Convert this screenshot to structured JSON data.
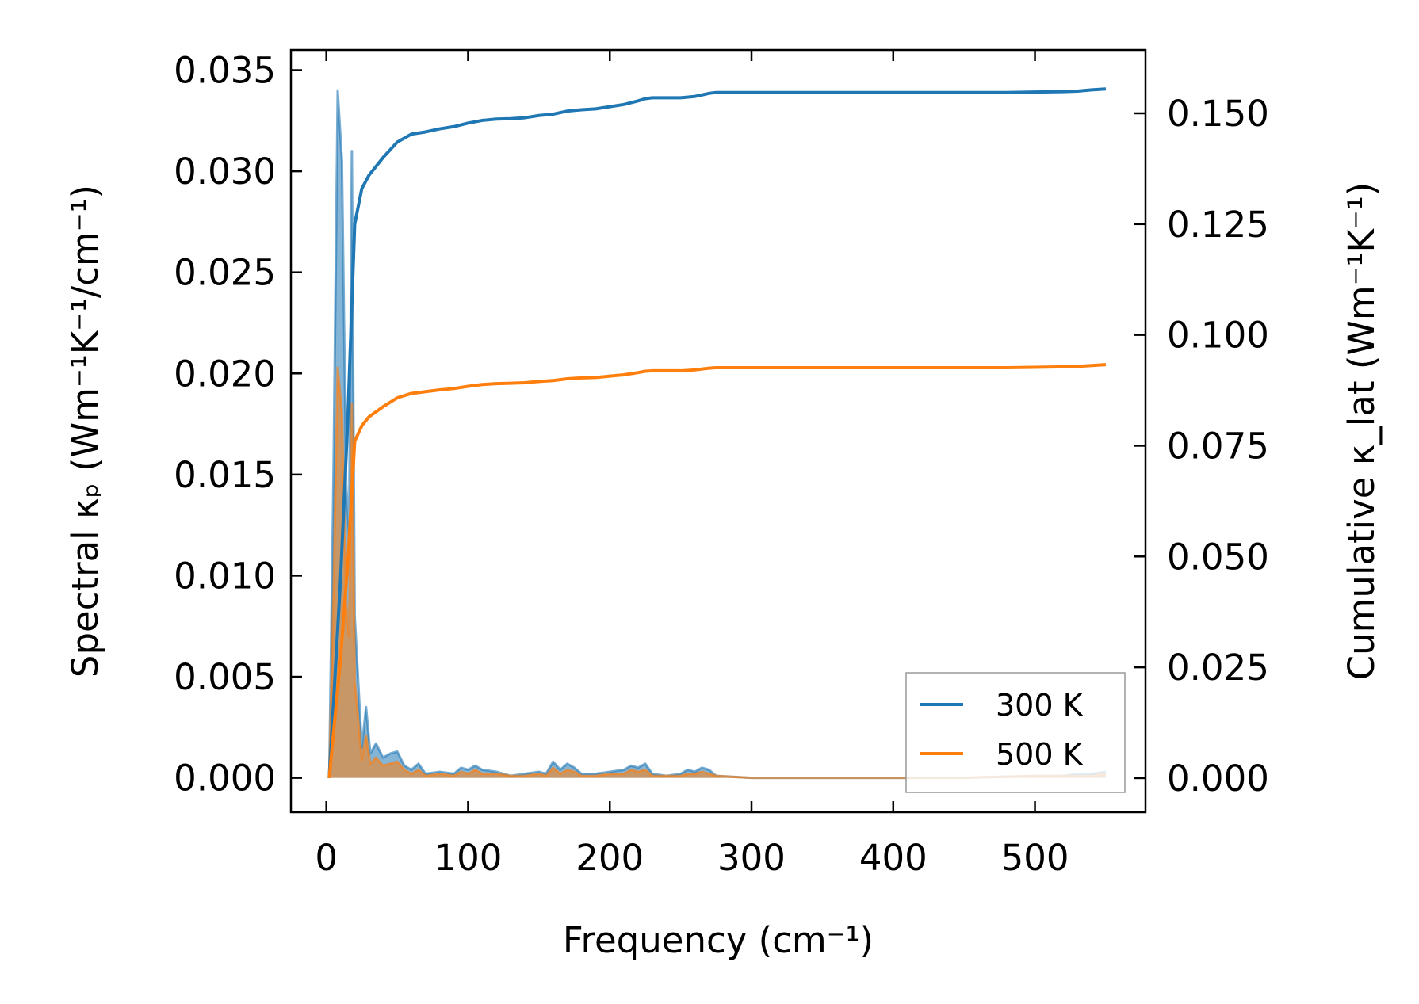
{
  "chart_data": {
    "type": "area",
    "xlabel": "Frequency (cm⁻¹)",
    "ylabel_left": "Spectral κₚ (Wm⁻¹K⁻¹/cm⁻¹)",
    "ylabel_right": "Cumulative κ_lat (Wm⁻¹K⁻¹)",
    "xlim": [
      -25,
      578
    ],
    "ylim_left": [
      -0.0017,
      0.036
    ],
    "ylim_right": [
      -0.0077,
      0.1643
    ],
    "x_ticks": [
      "0",
      "100",
      "200",
      "300",
      "400",
      "500"
    ],
    "y_ticks_left": [
      "0.000",
      "0.005",
      "0.010",
      "0.015",
      "0.020",
      "0.025",
      "0.030",
      "0.035"
    ],
    "y_ticks_right": [
      "0.000",
      "0.025",
      "0.050",
      "0.075",
      "0.100",
      "0.125",
      "0.150"
    ],
    "legend_position": "lower right",
    "colors": {
      "300 K": "#1f77b4",
      "500 K": "#ff7f0e"
    },
    "legend": [
      "300 K",
      "500 K"
    ],
    "series": [
      {
        "name": "300 K",
        "axis": "left",
        "kind": "spectral",
        "points": [
          [
            2,
            0.0
          ],
          [
            5,
            0.015
          ],
          [
            8,
            0.034
          ],
          [
            11,
            0.0305
          ],
          [
            14,
            0.0145
          ],
          [
            16,
            0.012
          ],
          [
            18,
            0.031
          ],
          [
            20,
            0.008
          ],
          [
            25,
            0.0015
          ],
          [
            28,
            0.0035
          ],
          [
            31,
            0.0012
          ],
          [
            35,
            0.0017
          ],
          [
            40,
            0.001
          ],
          [
            45,
            0.0012
          ],
          [
            50,
            0.0013
          ],
          [
            55,
            0.0006
          ],
          [
            60,
            0.0004
          ],
          [
            65,
            0.0007
          ],
          [
            70,
            0.0002
          ],
          [
            80,
            0.0003
          ],
          [
            90,
            0.0002
          ],
          [
            95,
            0.0005
          ],
          [
            100,
            0.0004
          ],
          [
            105,
            0.0006
          ],
          [
            110,
            0.0004
          ],
          [
            120,
            0.0003
          ],
          [
            130,
            0.0001
          ],
          [
            140,
            0.0002
          ],
          [
            150,
            0.0003
          ],
          [
            155,
            0.0002
          ],
          [
            160,
            0.0008
          ],
          [
            165,
            0.0004
          ],
          [
            170,
            0.0007
          ],
          [
            175,
            0.0005
          ],
          [
            180,
            0.0002
          ],
          [
            190,
            0.0002
          ],
          [
            200,
            0.0003
          ],
          [
            210,
            0.0004
          ],
          [
            215,
            0.0006
          ],
          [
            220,
            0.0005
          ],
          [
            225,
            0.0007
          ],
          [
            230,
            0.0002
          ],
          [
            240,
            0.0001
          ],
          [
            250,
            0.0002
          ],
          [
            255,
            0.0004
          ],
          [
            260,
            0.0003
          ],
          [
            265,
            0.0005
          ],
          [
            270,
            0.0004
          ],
          [
            275,
            0.0001
          ],
          [
            300,
            0.0
          ],
          [
            350,
            0.0
          ],
          [
            390,
            0.0
          ],
          [
            400,
            0.0
          ],
          [
            450,
            0.0
          ],
          [
            500,
            0.0001
          ],
          [
            520,
            0.0001
          ],
          [
            530,
            0.0002
          ],
          [
            540,
            0.0002
          ],
          [
            550,
            0.0003
          ]
        ]
      },
      {
        "name": "500 K",
        "axis": "left",
        "kind": "spectral",
        "points": [
          [
            2,
            0.0
          ],
          [
            5,
            0.009
          ],
          [
            8,
            0.0203
          ],
          [
            11,
            0.018
          ],
          [
            14,
            0.0087
          ],
          [
            16,
            0.007
          ],
          [
            18,
            0.0185
          ],
          [
            20,
            0.0048
          ],
          [
            25,
            0.0009
          ],
          [
            28,
            0.0021
          ],
          [
            31,
            0.0007
          ],
          [
            35,
            0.001
          ],
          [
            40,
            0.0006
          ],
          [
            45,
            0.0007
          ],
          [
            50,
            0.0008
          ],
          [
            55,
            0.0004
          ],
          [
            60,
            0.0002
          ],
          [
            65,
            0.0004
          ],
          [
            70,
            0.0001
          ],
          [
            80,
            0.0002
          ],
          [
            90,
            0.0001
          ],
          [
            95,
            0.0003
          ],
          [
            100,
            0.0002
          ],
          [
            105,
            0.0004
          ],
          [
            110,
            0.0002
          ],
          [
            120,
            0.0002
          ],
          [
            130,
            0.0001
          ],
          [
            140,
            0.0001
          ],
          [
            150,
            0.0002
          ],
          [
            155,
            0.0001
          ],
          [
            160,
            0.0005
          ],
          [
            165,
            0.0002
          ],
          [
            170,
            0.0004
          ],
          [
            175,
            0.0003
          ],
          [
            180,
            0.0001
          ],
          [
            190,
            0.0001
          ],
          [
            200,
            0.0002
          ],
          [
            210,
            0.0002
          ],
          [
            215,
            0.0004
          ],
          [
            220,
            0.0003
          ],
          [
            225,
            0.0004
          ],
          [
            230,
            0.0001
          ],
          [
            240,
            0.0001
          ],
          [
            250,
            0.0001
          ],
          [
            255,
            0.0002
          ],
          [
            260,
            0.0002
          ],
          [
            265,
            0.0003
          ],
          [
            270,
            0.0002
          ],
          [
            275,
            0.0001
          ],
          [
            300,
            0.0
          ],
          [
            350,
            0.0
          ],
          [
            390,
            0.0
          ],
          [
            400,
            0.0
          ],
          [
            450,
            0.0
          ],
          [
            500,
            0.0001
          ],
          [
            520,
            0.0001
          ],
          [
            530,
            0.0001
          ],
          [
            540,
            0.0001
          ],
          [
            550,
            0.0002
          ]
        ]
      },
      {
        "name": "300 K",
        "axis": "right",
        "kind": "cumulative",
        "points": [
          [
            2,
            0.0
          ],
          [
            10,
            0.045
          ],
          [
            15,
            0.08
          ],
          [
            20,
            0.125
          ],
          [
            25,
            0.133
          ],
          [
            30,
            0.136
          ],
          [
            40,
            0.14
          ],
          [
            50,
            0.1435
          ],
          [
            60,
            0.1453
          ],
          [
            70,
            0.1458
          ],
          [
            80,
            0.1465
          ],
          [
            90,
            0.147
          ],
          [
            100,
            0.1478
          ],
          [
            110,
            0.1484
          ],
          [
            120,
            0.1487
          ],
          [
            130,
            0.1488
          ],
          [
            140,
            0.149
          ],
          [
            150,
            0.1495
          ],
          [
            160,
            0.1498
          ],
          [
            170,
            0.1505
          ],
          [
            180,
            0.1508
          ],
          [
            190,
            0.151
          ],
          [
            200,
            0.1515
          ],
          [
            210,
            0.152
          ],
          [
            220,
            0.1528
          ],
          [
            225,
            0.1533
          ],
          [
            230,
            0.1535
          ],
          [
            240,
            0.1535
          ],
          [
            250,
            0.1535
          ],
          [
            260,
            0.1538
          ],
          [
            270,
            0.1545
          ],
          [
            275,
            0.1547
          ],
          [
            300,
            0.1547
          ],
          [
            400,
            0.1547
          ],
          [
            480,
            0.1547
          ],
          [
            500,
            0.1548
          ],
          [
            520,
            0.1549
          ],
          [
            530,
            0.155
          ],
          [
            540,
            0.1553
          ],
          [
            550,
            0.1555
          ]
        ]
      },
      {
        "name": "500 K",
        "axis": "right",
        "kind": "cumulative",
        "points": [
          [
            2,
            0.0
          ],
          [
            10,
            0.027
          ],
          [
            15,
            0.048
          ],
          [
            20,
            0.076
          ],
          [
            25,
            0.0795
          ],
          [
            30,
            0.0815
          ],
          [
            40,
            0.0838
          ],
          [
            50,
            0.0858
          ],
          [
            60,
            0.0868
          ],
          [
            70,
            0.0872
          ],
          [
            80,
            0.0876
          ],
          [
            90,
            0.0879
          ],
          [
            100,
            0.0884
          ],
          [
            110,
            0.0888
          ],
          [
            120,
            0.089
          ],
          [
            130,
            0.0891
          ],
          [
            140,
            0.0892
          ],
          [
            150,
            0.0895
          ],
          [
            160,
            0.0897
          ],
          [
            170,
            0.0901
          ],
          [
            180,
            0.0903
          ],
          [
            190,
            0.0904
          ],
          [
            200,
            0.0907
          ],
          [
            210,
            0.091
          ],
          [
            220,
            0.0915
          ],
          [
            225,
            0.0918
          ],
          [
            230,
            0.0919
          ],
          [
            240,
            0.0919
          ],
          [
            250,
            0.0919
          ],
          [
            260,
            0.0921
          ],
          [
            270,
            0.0925
          ],
          [
            275,
            0.0926
          ],
          [
            300,
            0.0926
          ],
          [
            400,
            0.0926
          ],
          [
            480,
            0.0926
          ],
          [
            500,
            0.0927
          ],
          [
            520,
            0.0928
          ],
          [
            530,
            0.0929
          ],
          [
            540,
            0.0931
          ],
          [
            550,
            0.0933
          ]
        ]
      }
    ]
  }
}
